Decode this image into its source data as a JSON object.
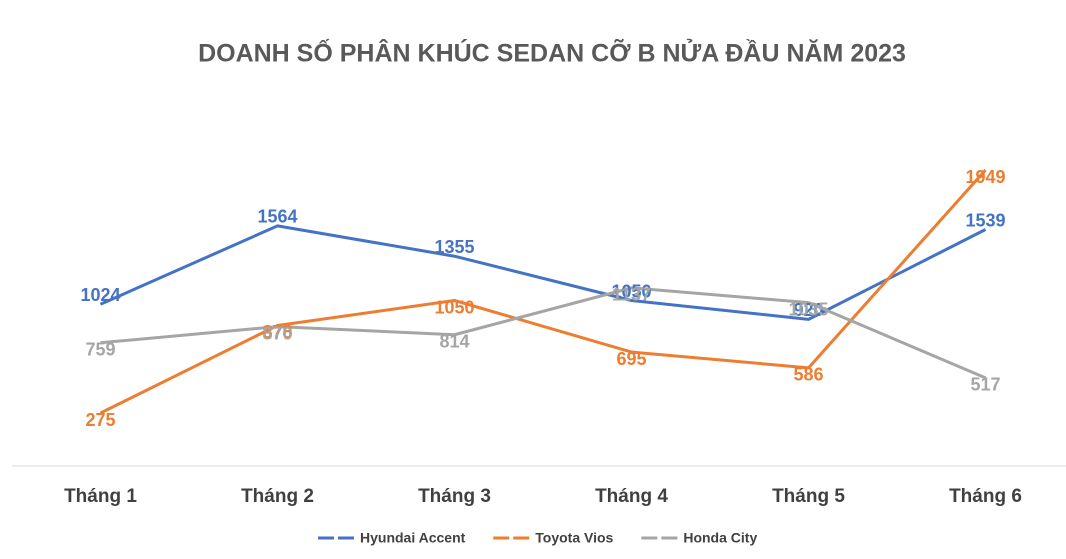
{
  "chart_data": {
    "type": "line",
    "title": "DOANH SỐ PHÂN KHÚC SEDAN CỠ B NỬA ĐẦU NĂM 2023",
    "categories": [
      "Tháng 1",
      "Tháng 2",
      "Tháng 3",
      "Tháng 4",
      "Tháng 5",
      "Tháng 6"
    ],
    "series": [
      {
        "name": "Hyundai Accent",
        "color": "#4472c4",
        "values": [
          1024,
          1564,
          1355,
          1050,
          920,
          1539
        ]
      },
      {
        "name": "Toyota Vios",
        "color": "#ed7d31",
        "values": [
          275,
          878,
          1050,
          695,
          586,
          1949
        ]
      },
      {
        "name": "Honda City",
        "color": "#a5a5a5",
        "values": [
          759,
          870,
          814,
          1137,
          1035,
          517
        ]
      }
    ]
  }
}
